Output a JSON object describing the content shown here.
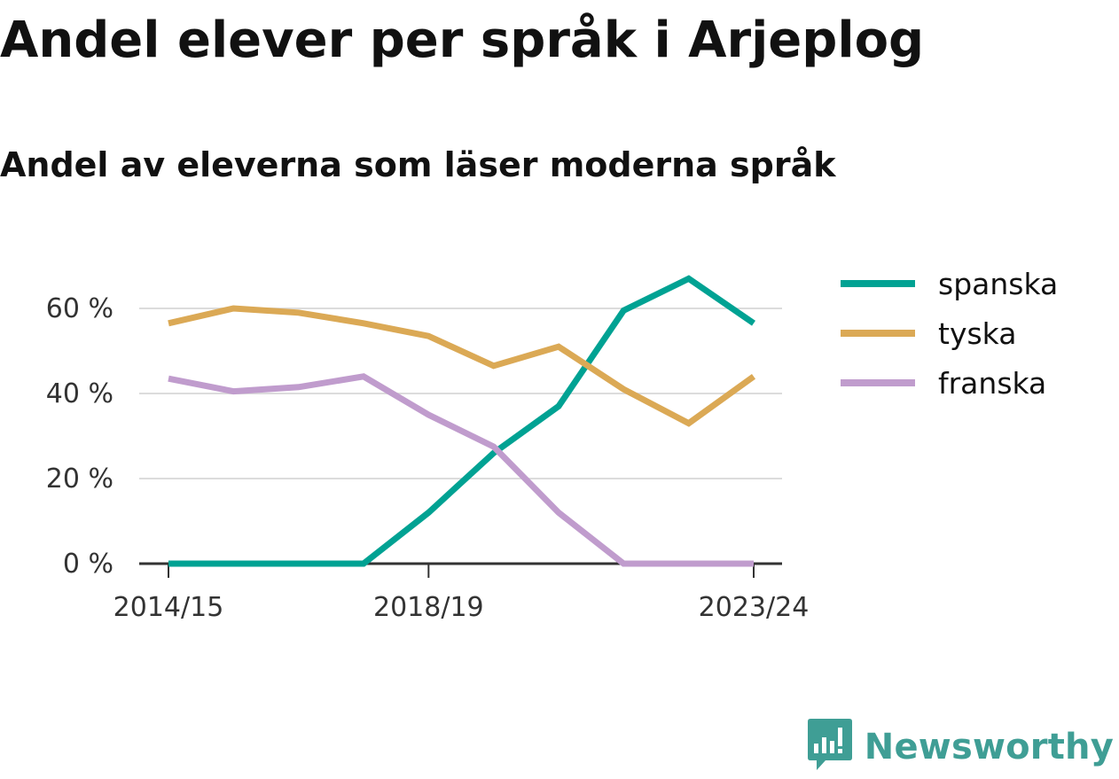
{
  "title": "Andel elever per språk i Arjeplog",
  "subtitle": "Andel av eleverna som läser moderna språk",
  "brand": {
    "name": "Newsworthy",
    "color": "#3f9e95",
    "logo_icon": "bar-chart-speech-bubble-icon"
  },
  "chart_data": {
    "type": "line",
    "x": [
      "2014/15",
      "2015/16",
      "2016/17",
      "2017/18",
      "2018/19",
      "2019/20",
      "2020/21",
      "2021/22",
      "2022/23",
      "2023/24"
    ],
    "x_tick_labels": [
      "2014/15",
      "2018/19",
      "2023/24"
    ],
    "y_ticks": [
      0,
      20,
      40,
      60
    ],
    "y_tick_labels": [
      "0 %",
      "20 %",
      "40 %",
      "60 %"
    ],
    "ylim": [
      0,
      70
    ],
    "grid": true,
    "legend_position": "right",
    "series": [
      {
        "name": "spanska",
        "color": "#00a293",
        "values": [
          0,
          0,
          0,
          0,
          12,
          26,
          37,
          59.5,
          67,
          56.5
        ]
      },
      {
        "name": "tyska",
        "color": "#dba955",
        "values": [
          56.5,
          60,
          59,
          56.5,
          53.5,
          46.5,
          51,
          41,
          33,
          44
        ]
      },
      {
        "name": "franska",
        "color": "#c09ccd",
        "values": [
          43.5,
          40.5,
          41.5,
          44,
          35,
          27.5,
          12,
          0,
          0,
          0
        ]
      }
    ]
  }
}
